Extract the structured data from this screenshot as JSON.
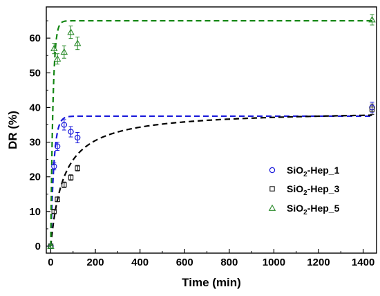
{
  "chart_data": {
    "type": "scatter",
    "title": "",
    "xlabel": "Time (min)",
    "ylabel": "DR (%)",
    "xlim": [
      -20,
      1460
    ],
    "ylim": [
      -2,
      69
    ],
    "xticks": [
      0,
      200,
      400,
      600,
      800,
      1000,
      1200,
      1400
    ],
    "yticks": [
      0,
      10,
      20,
      30,
      40,
      50,
      60
    ],
    "grid": false,
    "legend_position": "right",
    "series": [
      {
        "name": "SiO2-Hep_1",
        "name_main": "SiO",
        "name_sub": "2",
        "name_rest": "-Hep_1",
        "marker": "circle",
        "color": "#1a1adb",
        "points": [
          {
            "x": 0,
            "y": 0,
            "err": 0.5
          },
          {
            "x": 15,
            "y": 23,
            "err": 1.0
          },
          {
            "x": 30,
            "y": 28.8,
            "err": 1.2
          },
          {
            "x": 60,
            "y": 35,
            "err": 1.5
          },
          {
            "x": 90,
            "y": 33,
            "err": 1.5
          },
          {
            "x": 120,
            "y": 31.3,
            "err": 1.5
          },
          {
            "x": 1440,
            "y": 40,
            "err": 1.5
          }
        ],
        "fit": {
          "curve": "first-order",
          "plateau": 37.5,
          "k": 0.07,
          "color": "#1a1adb"
        }
      },
      {
        "name": "SiO2-Hep_3",
        "name_main": "SiO",
        "name_sub": "2",
        "name_rest": "-Hep_3",
        "marker": "square",
        "color": "#222222",
        "points": [
          {
            "x": 0,
            "y": 0,
            "err": 0.5
          },
          {
            "x": 15,
            "y": 10,
            "err": 0.5
          },
          {
            "x": 30,
            "y": 13.5,
            "err": 0.7
          },
          {
            "x": 60,
            "y": 17.7,
            "err": 0.8
          },
          {
            "x": 90,
            "y": 19.8,
            "err": 0.8
          },
          {
            "x": 120,
            "y": 22.5,
            "err": 0.8
          },
          {
            "x": 1440,
            "y": 39.5,
            "err": 1.5
          }
        ],
        "fit": {
          "curve": "second-order",
          "plateau": 39.3,
          "t_half": 58,
          "color": "#000000"
        }
      },
      {
        "name": "SiO2-Hep_5",
        "name_main": "SiO",
        "name_sub": "2",
        "name_rest": "-Hep_5",
        "marker": "triangle",
        "color": "#2a8a2a",
        "points": [
          {
            "x": 0,
            "y": 0,
            "err": 0.5
          },
          {
            "x": 15,
            "y": 57,
            "err": 1.5
          },
          {
            "x": 30,
            "y": 54,
            "err": 1.5
          },
          {
            "x": 60,
            "y": 56,
            "err": 1.8
          },
          {
            "x": 90,
            "y": 61.7,
            "err": 1.8
          },
          {
            "x": 120,
            "y": 58.5,
            "err": 1.8
          },
          {
            "x": 1440,
            "y": 65.3,
            "err": 1.5
          }
        ],
        "fit": {
          "curve": "first-order",
          "plateau": 65,
          "k": 0.1,
          "color": "#138613"
        }
      }
    ]
  }
}
